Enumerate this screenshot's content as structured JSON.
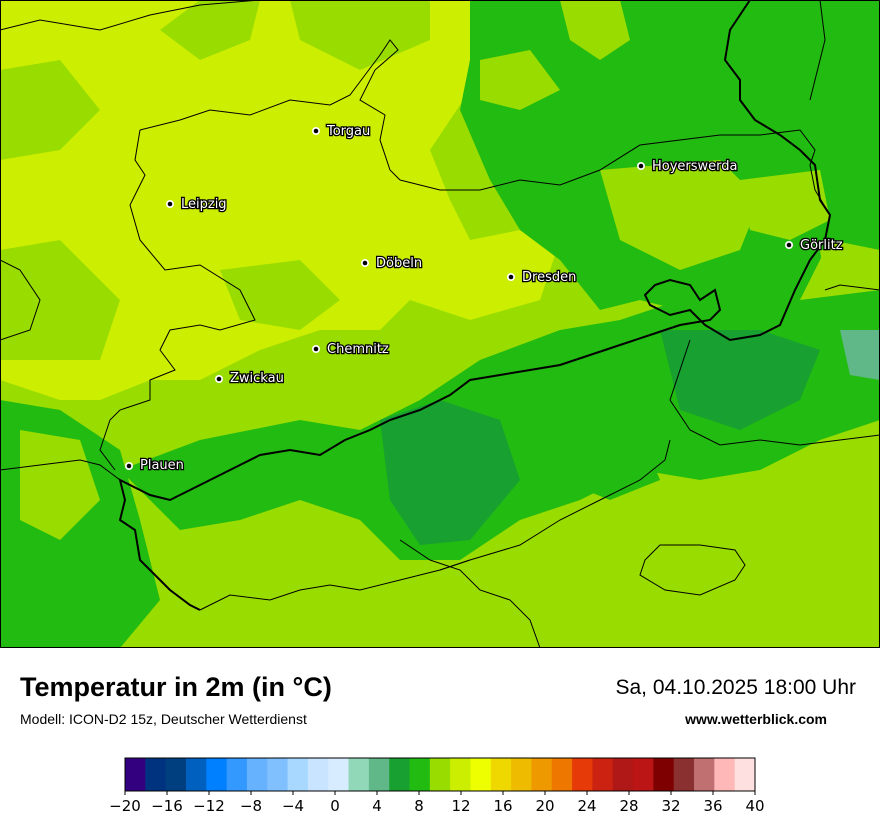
{
  "map": {
    "title": "Temperatur in 2m (in °C)",
    "model": "Modell: ICON-D2 15z, Deutscher Wetterdienst",
    "datetime": "Sa, 04.10.2025 18:00 Uhr",
    "website": "www.wetterblick.com",
    "cities": [
      {
        "id": "torgau",
        "name": "Torgau"
      },
      {
        "id": "hoyerswerda",
        "name": "Hoyerswerda"
      },
      {
        "id": "leipzig",
        "name": "Leipzig"
      },
      {
        "id": "goerlitz",
        "name": "Görlitz"
      },
      {
        "id": "doebeln",
        "name": "Döbeln"
      },
      {
        "id": "dresden",
        "name": "Dresden"
      },
      {
        "id": "chemnitz",
        "name": "Chemnitz"
      },
      {
        "id": "zwickau",
        "name": "Zwickau"
      },
      {
        "id": "plauen",
        "name": "Plauen"
      }
    ]
  },
  "legend": {
    "unit": "°C",
    "colors": [
      "#33007f",
      "#00337f",
      "#003f7f",
      "#0060bf",
      "#007fff",
      "#3399ff",
      "#66b2ff",
      "#80c0ff",
      "#a8d8ff",
      "#c8e4ff",
      "#d8ecff",
      "#90d8b8",
      "#60b888",
      "#18a030",
      "#22bb11",
      "#99dd00",
      "#ccee00",
      "#eeff00",
      "#eed800",
      "#eebb00",
      "#ee9900",
      "#ee7700",
      "#e63a08",
      "#cc2211",
      "#b01818",
      "#bb1515",
      "#7f0000",
      "#8b3030",
      "#c07070",
      "#ffb8b8",
      "#ffe0e0"
    ],
    "tick_labels": [
      "−20",
      "−16",
      "−12",
      "−8",
      "−4",
      "0",
      "4",
      "8",
      "12",
      "16",
      "20",
      "24",
      "28",
      "32",
      "36",
      "40"
    ]
  }
}
